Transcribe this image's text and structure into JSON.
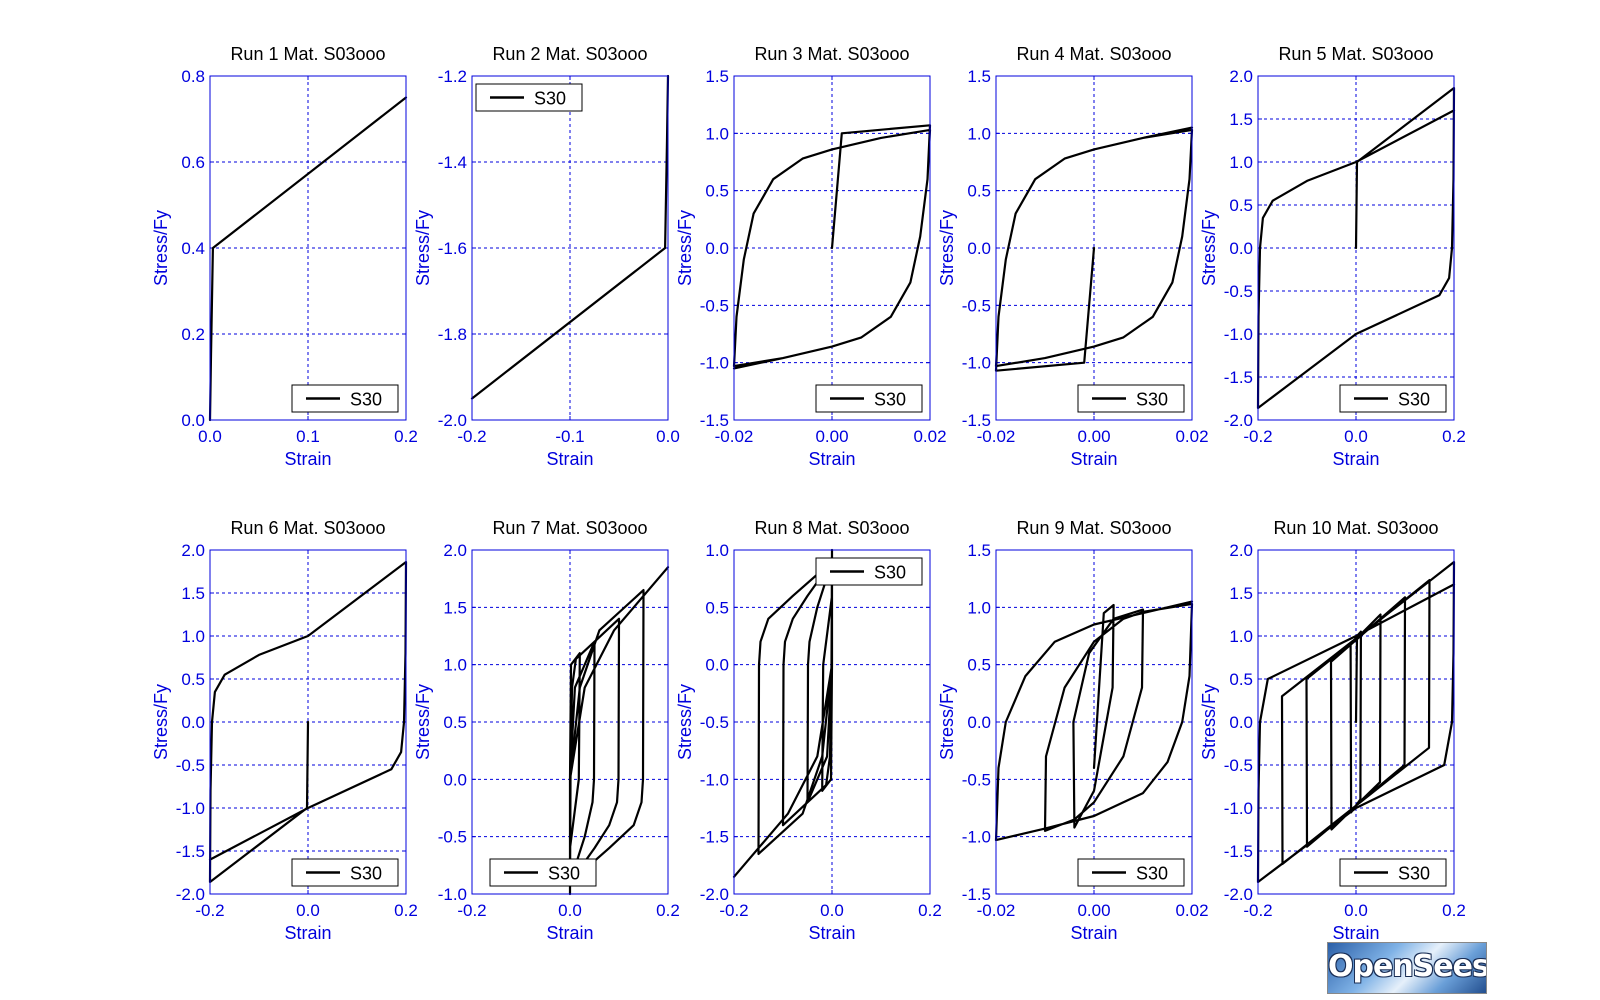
{
  "figure": {
    "logo_text": "OpenSees",
    "colors": {
      "axis": "#0000dd",
      "grid": "#0000dd",
      "curve": "#000000",
      "title": "#000000"
    }
  },
  "chart_data": [
    {
      "type": "line",
      "title": "Run 1   Mat. S03ooo",
      "xlabel": "Strain",
      "ylabel": "Stress/Fy",
      "xlim": [
        0.0,
        0.2
      ],
      "ylim": [
        0.0,
        0.8
      ],
      "xticks": [
        0.0,
        0.1,
        0.2
      ],
      "xtick_labels": [
        "0.0",
        "0.1",
        "0.2"
      ],
      "yticks": [
        0.0,
        0.2,
        0.4,
        0.6,
        0.8
      ],
      "ytick_labels": [
        "0.0",
        "0.2",
        "0.4",
        "0.6",
        "0.8"
      ],
      "grid": true,
      "legend": "bottom-right",
      "series": [
        {
          "name": "S30",
          "x": [
            0.0,
            0.001,
            0.003,
            0.2
          ],
          "y": [
            0.0,
            0.15,
            0.4,
            0.75
          ]
        }
      ]
    },
    {
      "type": "line",
      "title": "Run 2   Mat. S03ooo",
      "xlabel": "Strain",
      "ylabel": "Stress/Fy",
      "xlim": [
        -0.2,
        0.0
      ],
      "ylim": [
        -2.0,
        -1.2
      ],
      "xticks": [
        -0.2,
        -0.1,
        0.0
      ],
      "xtick_labels": [
        "-0.2",
        "-0.1",
        "0.0"
      ],
      "yticks": [
        -2.0,
        -1.8,
        -1.6,
        -1.4,
        -1.2
      ],
      "ytick_labels": [
        "-2.0",
        "-1.8",
        "-1.6",
        "-1.4",
        "-1.2"
      ],
      "grid": true,
      "legend": "top-left",
      "series": [
        {
          "name": "S30",
          "x": [
            0.0,
            -0.001,
            -0.003,
            -0.2
          ],
          "y": [
            -1.2,
            -1.35,
            -1.6,
            -1.95
          ]
        }
      ]
    },
    {
      "type": "line",
      "title": "Run 3   Mat. S03ooo",
      "xlabel": "Strain",
      "ylabel": "Stress/Fy",
      "xlim": [
        -0.02,
        0.02
      ],
      "ylim": [
        -1.5,
        1.5
      ],
      "xticks": [
        -0.02,
        0.0,
        0.02
      ],
      "xtick_labels": [
        "-0.02",
        "0.00",
        "0.02"
      ],
      "yticks": [
        -1.5,
        -1.0,
        -0.5,
        0.0,
        0.5,
        1.0,
        1.5
      ],
      "ytick_labels": [
        "-1.5",
        "-1.0",
        "-0.5",
        "0.0",
        "0.5",
        "1.0",
        "1.5"
      ],
      "grid": true,
      "legend": "bottom-right",
      "series": [
        {
          "name": "S30",
          "x": [
            0.0,
            0.002,
            0.02,
            0.0195,
            0.018,
            0.016,
            0.012,
            0.006,
            0.0,
            -0.01,
            -0.02,
            -0.0195,
            -0.018,
            -0.016,
            -0.012,
            -0.006,
            0.0,
            0.01,
            0.02,
            0.0195,
            0.018,
            0.016,
            0.012,
            0.006,
            0.0,
            -0.01,
            -0.02
          ],
          "y": [
            0.0,
            1.0,
            1.07,
            0.6,
            0.1,
            -0.3,
            -0.6,
            -0.78,
            -0.86,
            -0.96,
            -1.03,
            -0.6,
            -0.1,
            0.3,
            0.6,
            0.78,
            0.86,
            0.96,
            1.03,
            0.6,
            0.1,
            -0.3,
            -0.6,
            -0.78,
            -0.86,
            -0.96,
            -1.05
          ]
        }
      ]
    },
    {
      "type": "line",
      "title": "Run 4   Mat. S03ooo",
      "xlabel": "Strain",
      "ylabel": "Stress/Fy",
      "xlim": [
        -0.02,
        0.02
      ],
      "ylim": [
        -1.5,
        1.5
      ],
      "xticks": [
        -0.02,
        0.0,
        0.02
      ],
      "xtick_labels": [
        "-0.02",
        "0.00",
        "0.02"
      ],
      "yticks": [
        -1.5,
        -1.0,
        -0.5,
        0.0,
        0.5,
        1.0,
        1.5
      ],
      "ytick_labels": [
        "-1.5",
        "-1.0",
        "-0.5",
        "0.0",
        "0.5",
        "1.0",
        "1.5"
      ],
      "grid": true,
      "legend": "bottom-right",
      "series": [
        {
          "name": "S30",
          "x": [
            0.0,
            -0.002,
            -0.02,
            -0.0195,
            -0.018,
            -0.016,
            -0.012,
            -0.006,
            0.0,
            0.01,
            0.02,
            0.0195,
            0.018,
            0.016,
            0.012,
            0.006,
            0.0,
            -0.01,
            -0.02,
            -0.0195,
            -0.018,
            -0.016,
            -0.012,
            -0.006,
            0.0,
            0.01,
            0.02
          ],
          "y": [
            0.0,
            -1.0,
            -1.07,
            -0.6,
            -0.1,
            0.3,
            0.6,
            0.78,
            0.86,
            0.96,
            1.03,
            0.6,
            0.1,
            -0.3,
            -0.6,
            -0.78,
            -0.86,
            -0.96,
            -1.03,
            -0.6,
            -0.1,
            0.3,
            0.6,
            0.78,
            0.86,
            0.96,
            1.05
          ]
        }
      ]
    },
    {
      "type": "line",
      "title": "Run 5   Mat. S03ooo",
      "xlabel": "Strain",
      "ylabel": "Stress/Fy",
      "xlim": [
        -0.2,
        0.2
      ],
      "ylim": [
        -2.0,
        2.0
      ],
      "xticks": [
        -0.2,
        0.0,
        0.2
      ],
      "xtick_labels": [
        "-0.2",
        "0.0",
        "0.2"
      ],
      "yticks": [
        -2.0,
        -1.5,
        -1.0,
        -0.5,
        0.0,
        0.5,
        1.0,
        1.5,
        2.0
      ],
      "ytick_labels": [
        "-2.0",
        "-1.5",
        "-1.0",
        "-0.5",
        "0.0",
        "0.5",
        "1.0",
        "1.5",
        "2.0"
      ],
      "grid": true,
      "legend": "bottom-right",
      "series": [
        {
          "name": "S30",
          "x": [
            0.0,
            0.002,
            0.2,
            0.199,
            0.196,
            0.19,
            0.17,
            0.0,
            -0.2,
            -0.199,
            -0.196,
            -0.19,
            -0.17,
            -0.1,
            0.0,
            0.2
          ],
          "y": [
            0.0,
            1.0,
            1.86,
            0.8,
            0.0,
            -0.35,
            -0.55,
            -1.0,
            -1.86,
            -0.8,
            0.0,
            0.35,
            0.55,
            0.78,
            1.0,
            1.6
          ]
        }
      ]
    },
    {
      "type": "line",
      "title": "Run 6   Mat. S03ooo",
      "xlabel": "Strain",
      "ylabel": "Stress/Fy",
      "xlim": [
        -0.2,
        0.2
      ],
      "ylim": [
        -2.0,
        2.0
      ],
      "xticks": [
        -0.2,
        0.0,
        0.2
      ],
      "xtick_labels": [
        "-0.2",
        "0.0",
        "0.2"
      ],
      "yticks": [
        -2.0,
        -1.5,
        -1.0,
        -0.5,
        0.0,
        0.5,
        1.0,
        1.5,
        2.0
      ],
      "ytick_labels": [
        "-2.0",
        "-1.5",
        "-1.0",
        "-0.5",
        "0.0",
        "0.5",
        "1.0",
        "1.5",
        "2.0"
      ],
      "grid": true,
      "legend": "bottom-right",
      "series": [
        {
          "name": "S30",
          "x": [
            0.0,
            -0.002,
            -0.2,
            -0.199,
            -0.196,
            -0.19,
            -0.17,
            -0.1,
            0.0,
            0.2,
            0.199,
            0.196,
            0.19,
            0.17,
            0.0,
            -0.2
          ],
          "y": [
            0.0,
            -1.0,
            -1.86,
            -0.8,
            0.0,
            0.35,
            0.55,
            0.78,
            1.0,
            1.86,
            0.8,
            0.0,
            -0.35,
            -0.55,
            -1.0,
            -1.6
          ]
        }
      ]
    },
    {
      "type": "line",
      "title": "Run 7   Mat. S03ooo",
      "xlabel": "Strain",
      "ylabel": "Stress/Fy",
      "xlim": [
        -0.2,
        0.2
      ],
      "ylim": [
        -1.0,
        2.0
      ],
      "xticks": [
        -0.2,
        0.0,
        0.2
      ],
      "xtick_labels": [
        "-0.2",
        "0.0",
        "0.2"
      ],
      "yticks": [
        -1.0,
        -0.5,
        0.0,
        0.5,
        1.0,
        1.5,
        2.0
      ],
      "ytick_labels": [
        "-1.0",
        "-0.5",
        "0.0",
        "0.5",
        "1.0",
        "1.5",
        "2.0"
      ],
      "grid": true,
      "legend": "bottom-left",
      "series": [
        {
          "name": "S30",
          "x": [
            0.0,
            0.002,
            0.02,
            0.019,
            0.018,
            0.0,
            0.0,
            0.001,
            0.004,
            0.012,
            0.05,
            0.049,
            0.046,
            0.03,
            0.0,
            0.0,
            0.01,
            0.05,
            0.1,
            0.099,
            0.096,
            0.08,
            0.05,
            0.0,
            0.0,
            0.02,
            0.06,
            0.15,
            0.149,
            0.146,
            0.13,
            0.08,
            0.0,
            0.0,
            0.03,
            0.09,
            0.2
          ],
          "y": [
            0.0,
            1.0,
            1.1,
            0.5,
            0.0,
            -0.6,
            -1.0,
            0.0,
            0.8,
            1.05,
            1.2,
            0.0,
            -0.2,
            -0.5,
            -0.9,
            0.0,
            0.8,
            1.2,
            1.4,
            0.0,
            -0.2,
            -0.4,
            -0.6,
            -0.9,
            0.0,
            0.8,
            1.3,
            1.65,
            0.0,
            -0.2,
            -0.4,
            -0.6,
            -0.9,
            0.0,
            0.8,
            1.3,
            1.85
          ]
        }
      ]
    },
    {
      "type": "line",
      "title": "Run 8   Mat. S03ooo",
      "xlabel": "Strain",
      "ylabel": "Stress/Fy",
      "xlim": [
        -0.2,
        0.2
      ],
      "ylim": [
        -2.0,
        1.0
      ],
      "xticks": [
        -0.2,
        0.0,
        0.2
      ],
      "xtick_labels": [
        "-0.2",
        "0.0",
        "0.2"
      ],
      "yticks": [
        -2.0,
        -1.5,
        -1.0,
        -0.5,
        0.0,
        0.5,
        1.0
      ],
      "ytick_labels": [
        "-2.0",
        "-1.5",
        "-1.0",
        "-0.5",
        "0.0",
        "0.5",
        "1.0"
      ],
      "grid": true,
      "legend": "top-right",
      "series": [
        {
          "name": "S30",
          "x": [
            0.0,
            -0.002,
            -0.02,
            -0.019,
            -0.018,
            0.0,
            0.0,
            -0.001,
            -0.004,
            -0.012,
            -0.05,
            -0.049,
            -0.046,
            -0.03,
            0.0,
            0.0,
            -0.01,
            -0.05,
            -0.1,
            -0.099,
            -0.096,
            -0.08,
            -0.05,
            0.0,
            0.0,
            -0.02,
            -0.06,
            -0.15,
            -0.149,
            -0.146,
            -0.13,
            -0.08,
            0.0,
            0.0,
            -0.03,
            -0.09,
            -0.2
          ],
          "y": [
            0.0,
            -1.0,
            -1.1,
            -0.5,
            0.0,
            0.6,
            1.0,
            0.0,
            -0.8,
            -1.05,
            -1.2,
            0.0,
            0.2,
            0.5,
            0.9,
            0.0,
            -0.8,
            -1.2,
            -1.4,
            0.0,
            0.2,
            0.4,
            0.6,
            0.9,
            0.0,
            -0.8,
            -1.3,
            -1.65,
            0.0,
            0.2,
            0.4,
            0.6,
            0.9,
            0.0,
            -0.8,
            -1.3,
            -1.85
          ]
        }
      ]
    },
    {
      "type": "line",
      "title": "Run 9   Mat. S03ooo",
      "xlabel": "Strain",
      "ylabel": "Stress/Fy",
      "xlim": [
        -0.02,
        0.02
      ],
      "ylim": [
        -1.5,
        1.5
      ],
      "xticks": [
        -0.02,
        0.0,
        0.02
      ],
      "xtick_labels": [
        "-0.02",
        "0.00",
        "0.02"
      ],
      "yticks": [
        -1.5,
        -1.0,
        -0.5,
        0.0,
        0.5,
        1.0,
        1.5
      ],
      "ytick_labels": [
        "-1.5",
        "-1.0",
        "-0.5",
        "0.0",
        "0.5",
        "1.0",
        "1.5"
      ],
      "grid": true,
      "legend": "bottom-right",
      "series": [
        {
          "name": "S30",
          "x": [
            0.0,
            0.002,
            0.004,
            0.0038,
            0.0,
            -0.004,
            -0.0042,
            -0.001,
            0.004,
            0.01,
            0.0098,
            0.006,
            0.0,
            -0.004,
            -0.01,
            -0.0098,
            -0.006,
            0.0,
            0.006,
            0.01,
            0.02,
            0.0195,
            0.018,
            0.015,
            0.01,
            0.0,
            -0.01,
            -0.02,
            -0.0195,
            -0.018,
            -0.014,
            -0.008,
            0.0,
            0.01,
            0.02
          ],
          "y": [
            -0.4,
            0.95,
            1.02,
            0.3,
            -0.6,
            -0.92,
            0.0,
            0.6,
            0.9,
            0.98,
            0.3,
            -0.3,
            -0.7,
            -0.85,
            -0.95,
            -0.3,
            0.3,
            0.7,
            0.9,
            0.96,
            1.03,
            0.4,
            0.0,
            -0.35,
            -0.62,
            -0.82,
            -0.93,
            -1.03,
            -0.4,
            0.0,
            0.4,
            0.7,
            0.85,
            0.95,
            1.05
          ]
        }
      ]
    },
    {
      "type": "line",
      "title": "Run 10   Mat. S03ooo",
      "xlabel": "Strain",
      "ylabel": "Stress/Fy",
      "xlim": [
        -0.2,
        0.2
      ],
      "ylim": [
        -2.0,
        2.0
      ],
      "xticks": [
        -0.2,
        0.0,
        0.2
      ],
      "xtick_labels": [
        "-0.2",
        "0.0",
        "0.2"
      ],
      "yticks": [
        -2.0,
        -1.5,
        -1.0,
        -0.5,
        0.0,
        0.5,
        1.0,
        1.5,
        2.0
      ],
      "ytick_labels": [
        "-2.0",
        "-1.5",
        "-1.0",
        "-0.5",
        "0.0",
        "0.5",
        "1.0",
        "1.5",
        "2.0"
      ],
      "grid": true,
      "legend": "bottom-right",
      "series": [
        {
          "name": "S30",
          "x": [
            0.0,
            0.002,
            0.01,
            0.009,
            -0.01,
            -0.011,
            0.01,
            0.009,
            -0.01,
            -0.011,
            0.05,
            0.049,
            -0.05,
            -0.051,
            0.1,
            0.099,
            -0.1,
            -0.101,
            0.15,
            0.149,
            -0.15,
            -0.151,
            0.2,
            0.199,
            0.196,
            0.18,
            0.0,
            -0.2,
            -0.199,
            -0.196,
            -0.18,
            0.0,
            0.2
          ],
          "y": [
            0.0,
            1.0,
            1.05,
            -0.9,
            -1.05,
            0.9,
            1.05,
            -0.9,
            -1.05,
            0.9,
            1.25,
            -0.7,
            -1.25,
            0.7,
            1.45,
            -0.5,
            -1.45,
            0.5,
            1.65,
            -0.3,
            -1.65,
            0.3,
            1.86,
            0.8,
            0.0,
            -0.5,
            -1.0,
            -1.86,
            -0.8,
            0.0,
            0.5,
            1.0,
            1.6
          ]
        }
      ]
    }
  ]
}
